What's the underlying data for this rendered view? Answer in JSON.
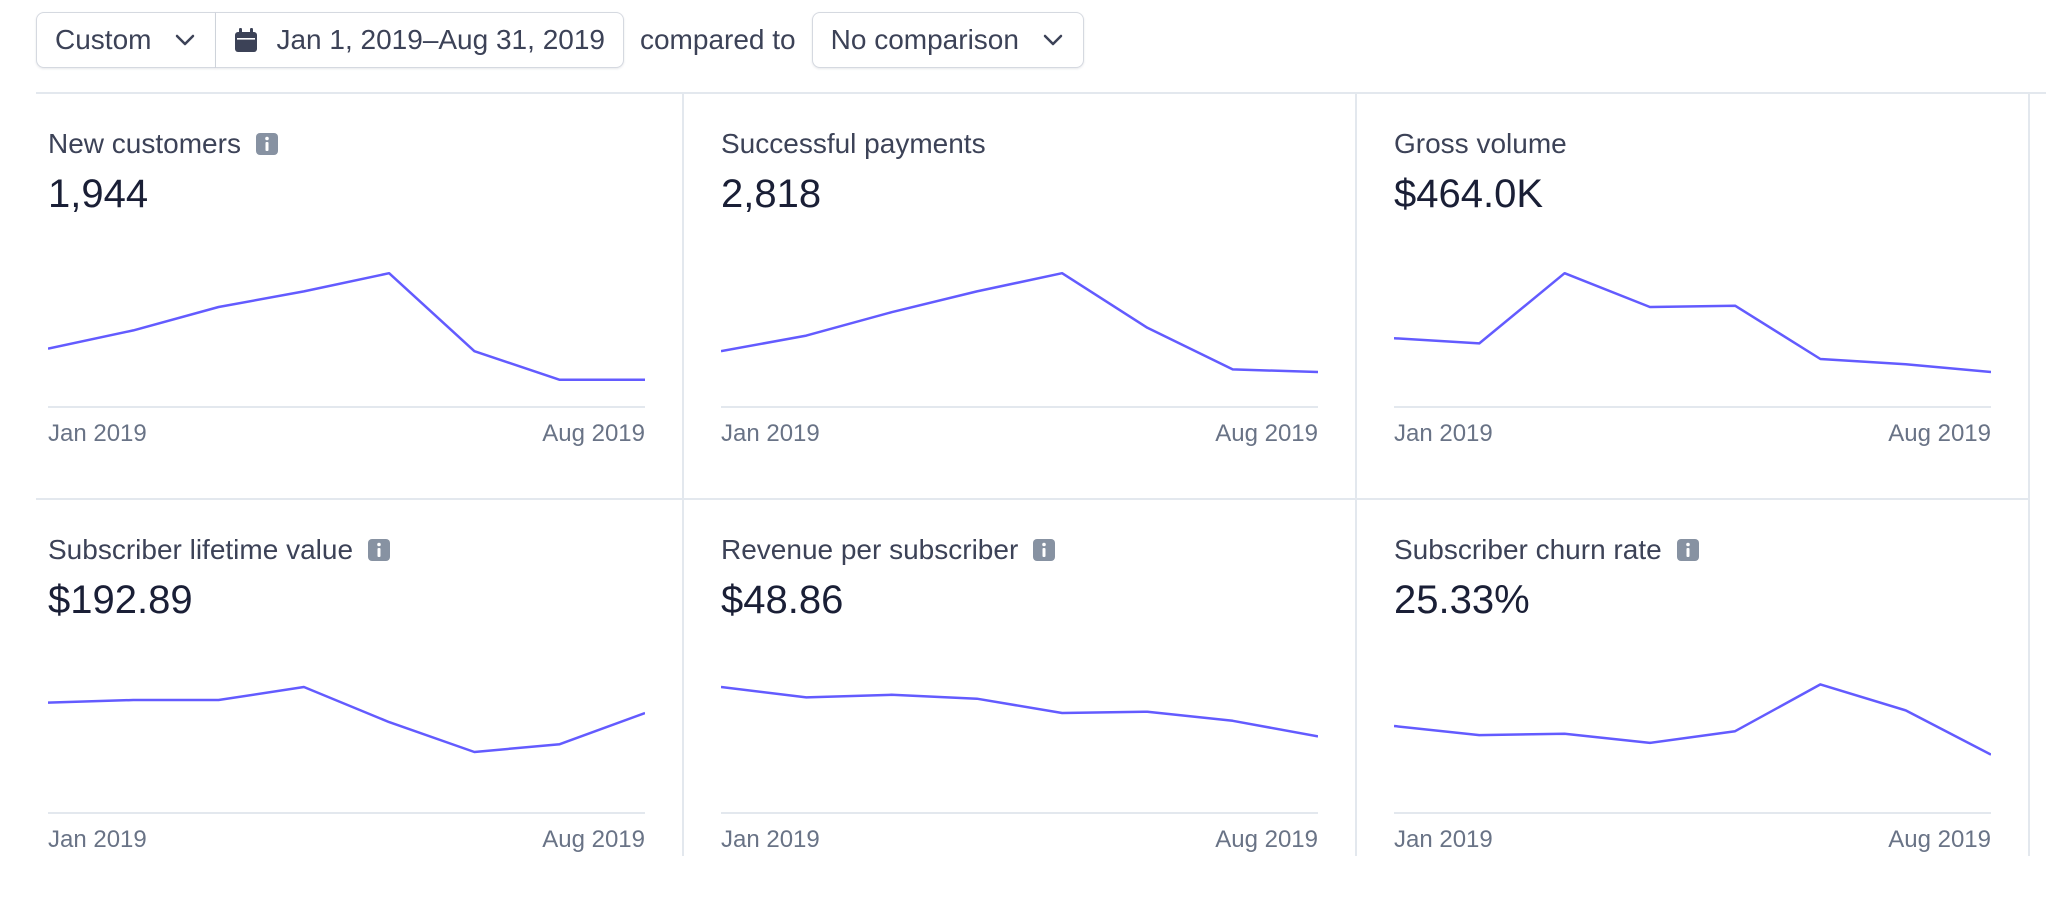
{
  "toolbar": {
    "range_preset": "Custom",
    "date_range": "Jan 1, 2019–Aug 31, 2019",
    "compared_to_label": "compared to",
    "comparison": "No comparison"
  },
  "colors": {
    "line": "#635bff",
    "info_icon": "#8792a2"
  },
  "cards": [
    {
      "title": "New customers",
      "has_info": true,
      "value": "1,944",
      "x_start": "Jan 2019",
      "x_end": "Aug 2019",
      "series": [
        0.38,
        0.52,
        0.7,
        0.82,
        0.96,
        0.36,
        0.14,
        0.14
      ]
    },
    {
      "title": "Successful payments",
      "has_info": false,
      "value": "2,818",
      "x_start": "Jan 2019",
      "x_end": "Aug 2019",
      "series": [
        0.36,
        0.48,
        0.66,
        0.82,
        0.96,
        0.54,
        0.22,
        0.2
      ]
    },
    {
      "title": "Gross volume",
      "has_info": false,
      "value": "$464.0K",
      "x_start": "Jan 2019",
      "x_end": "Aug 2019",
      "series": [
        0.46,
        0.42,
        0.96,
        0.7,
        0.71,
        0.3,
        0.26,
        0.2
      ]
    },
    {
      "title": "Subscriber lifetime value",
      "has_info": true,
      "value": "$192.89",
      "x_start": "Jan 2019",
      "x_end": "Aug 2019",
      "series": [
        0.78,
        0.8,
        0.8,
        0.9,
        0.63,
        0.4,
        0.46,
        0.7
      ]
    },
    {
      "title": "Revenue per subscriber",
      "has_info": true,
      "value": "$48.86",
      "x_start": "Jan 2019",
      "x_end": "Aug 2019",
      "series": [
        0.9,
        0.82,
        0.84,
        0.81,
        0.7,
        0.71,
        0.64,
        0.52
      ]
    },
    {
      "title": "Subscriber churn rate",
      "has_info": true,
      "value": "25.33%",
      "x_start": "Jan 2019",
      "x_end": "Aug 2019",
      "series": [
        0.6,
        0.53,
        0.54,
        0.47,
        0.56,
        0.92,
        0.72,
        0.38
      ]
    }
  ]
}
